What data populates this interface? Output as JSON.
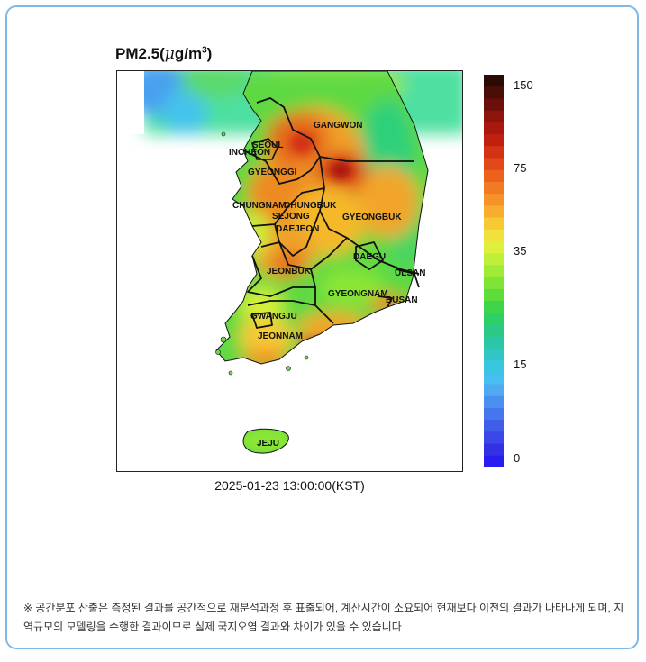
{
  "title": {
    "prefix": "PM2.5(",
    "mu": "μ",
    "unit": "g/m",
    "exp": "3",
    "suffix": ")"
  },
  "timestamp": "2025-01-23 13:00:00(KST)",
  "colorbar": {
    "ticks": [
      "150",
      "75",
      "35",
      "15",
      "0"
    ],
    "colors": [
      "#2a0a05",
      "#4a0d08",
      "#6b0f0a",
      "#8c140c",
      "#a8180f",
      "#bf2010",
      "#d43212",
      "#e24818",
      "#ec621d",
      "#f27a22",
      "#f59328",
      "#f8ad2e",
      "#f6c935",
      "#f1e13c",
      "#dff03c",
      "#c0ef3a",
      "#9feb38",
      "#7ee436",
      "#5ddc3a",
      "#3fd54a",
      "#2ecf66",
      "#2ac986",
      "#2bc6a6",
      "#30c6c6",
      "#39c6df",
      "#45bfee",
      "#4faaf2",
      "#4b90f1",
      "#4676ee",
      "#405de9",
      "#3a46e6",
      "#3430e4",
      "#2a1cf0"
    ]
  },
  "regions": [
    {
      "name": "GANGWON"
    },
    {
      "name": "SEOUL"
    },
    {
      "name": "INCHEON"
    },
    {
      "name": "GYEONGGI"
    },
    {
      "name": "CHUNGNAM"
    },
    {
      "name": "CHUNGBUK"
    },
    {
      "name": "SEJONG"
    },
    {
      "name": "DAEJEON"
    },
    {
      "name": "GYEONGBUK"
    },
    {
      "name": "DAEGU"
    },
    {
      "name": "ULSAN"
    },
    {
      "name": "JEONBUK"
    },
    {
      "name": "GYEONGNAM"
    },
    {
      "name": "BUSAN"
    },
    {
      "name": "GWANGJU"
    },
    {
      "name": "JEONNAM"
    },
    {
      "name": "JEJU"
    }
  ],
  "note": "※ 공간분포 산출은 측정된 결과를 공간적으로 재분석과정 후 표출되어, 계산시간이 소요되어 현재보다 이전의 결과가 나타나게 되며, 지역규모의 모델링을 수행한 결과이므로 실제 국지오염 결과와 차이가 있을 수 있습니다"
}
